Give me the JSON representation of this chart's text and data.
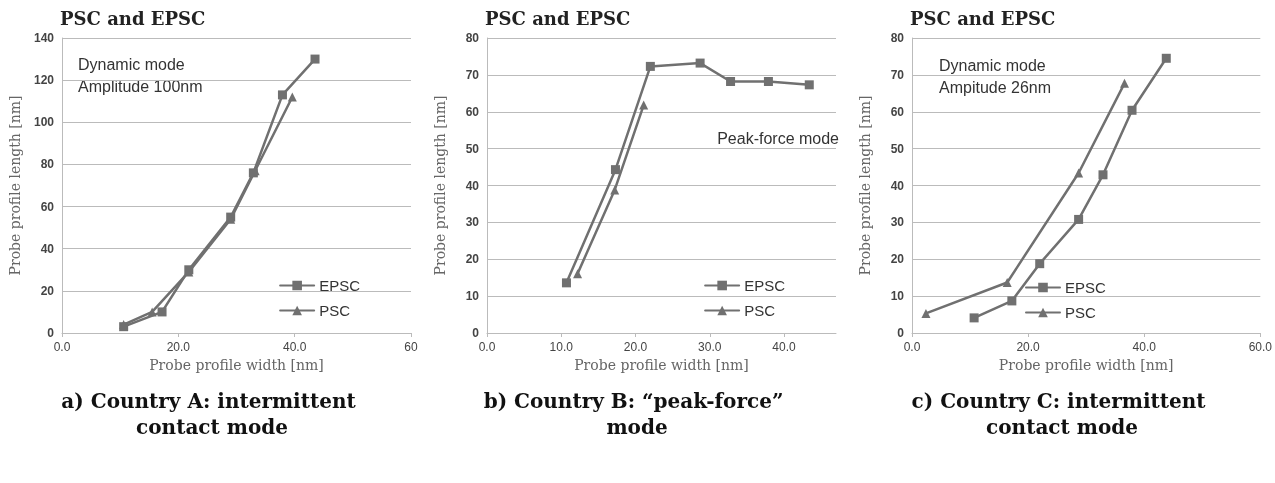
{
  "chart_data": [
    {
      "type": "line",
      "title": "PSC and EPSC",
      "xlabel": "Probe profile width [nm]",
      "ylabel": "Probe profile length [nm]",
      "xlim": [
        0,
        60
      ],
      "xticks": [
        {
          "value": 0,
          "label": "0.0"
        },
        {
          "value": 20,
          "label": "20.0"
        },
        {
          "value": 40,
          "label": "40.0"
        },
        60
      ],
      "ylim": [
        0,
        140
      ],
      "yticks": [
        0,
        20,
        40,
        60,
        80,
        100,
        120,
        140
      ],
      "grid": "y",
      "legend": "bottom right",
      "line_style": "solid",
      "annotations": [
        "Dynamic mode\nAmplitude 100nm",
        "a) Country A: intermittent contact mode"
      ],
      "series": [
        {
          "name": "EPSC",
          "color": "#707070",
          "marker": "square",
          "x": [
            10.6,
            17.2,
            21.8,
            29.0,
            32.9,
            37.9,
            43.5
          ],
          "values": [
            3,
            10,
            30,
            55,
            76,
            113,
            130
          ]
        },
        {
          "name": "PSC",
          "color": "#707070",
          "marker": "triangle",
          "x": [
            10.6,
            15.5,
            21.8,
            29.0,
            33.2,
            39.6
          ],
          "values": [
            4,
            10,
            29,
            54,
            77,
            112
          ]
        }
      ]
    },
    {
      "type": "line",
      "title": "PSC and EPSC",
      "xlabel": "Probe profile width [nm]",
      "ylabel": "Probe profile length [nm]",
      "xlim": [
        0,
        47
      ],
      "xticks": [
        {
          "value": 0,
          "label": "0.0"
        },
        {
          "value": 10,
          "label": "10.0"
        },
        {
          "value": 20,
          "label": "20.0"
        },
        {
          "value": 30,
          "label": "30.0"
        },
        {
          "value": 40,
          "label": "40.0"
        }
      ],
      "ylim": [
        0,
        80
      ],
      "yticks": [
        0,
        10,
        20,
        30,
        40,
        50,
        60,
        70,
        80
      ],
      "grid": "y",
      "legend": "bottom right",
      "line_style": "solid",
      "annotations": [
        "Peak-force mode",
        "b) Country B: “peak-force” mode"
      ],
      "series": [
        {
          "name": "EPSC",
          "color": "#707070",
          "marker": "square",
          "x": [
            10.7,
            17.3,
            22.0,
            28.7,
            32.8,
            37.9,
            43.4
          ],
          "values": [
            13.6,
            44.3,
            72.3,
            73.2,
            68.2,
            68.2,
            67.3
          ]
        },
        {
          "name": "PSC",
          "color": "#707070",
          "marker": "triangle",
          "x": [
            12.2,
            17.2,
            21.1
          ],
          "values": [
            16.1,
            38.8,
            61.8
          ]
        }
      ]
    },
    {
      "type": "line",
      "title": "PSC and EPSC",
      "xlabel": "Probe profile width [nm]",
      "ylabel": "Probe profile length [nm]",
      "xlim": [
        0,
        60
      ],
      "xticks": [
        {
          "value": 0,
          "label": "0.0"
        },
        {
          "value": 20,
          "label": "20.0"
        },
        {
          "value": 40,
          "label": "40.0"
        },
        {
          "value": 60,
          "label": "60.0"
        }
      ],
      "ylim": [
        0,
        80
      ],
      "yticks": [
        0,
        10,
        20,
        30,
        40,
        50,
        60,
        70,
        80
      ],
      "grid": "y",
      "legend": "bottom",
      "line_style": "solid",
      "annotations": [
        "Dynamic mode\nAmpitude 26nm",
        "c) Country C: intermittent contact mode"
      ],
      "series": [
        {
          "name": "EPSC",
          "color": "#707070",
          "marker": "square",
          "x": [
            10.7,
            17.2,
            22.0,
            28.7,
            32.9,
            37.9,
            43.8
          ],
          "values": [
            4.1,
            8.7,
            18.8,
            30.8,
            42.9,
            60.4,
            74.5
          ]
        },
        {
          "name": "PSC",
          "color": "#707070",
          "marker": "triangle",
          "x": [
            2.4,
            16.4,
            28.7,
            36.6
          ],
          "values": [
            5.3,
            13.7,
            43.4,
            67.7
          ]
        }
      ]
    }
  ]
}
